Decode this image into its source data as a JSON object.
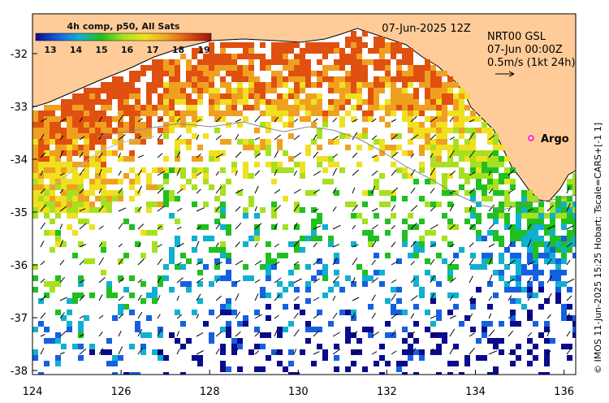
{
  "product_label": "4h comp, p50, All Sats",
  "colorbar": {
    "ticks": [
      "13",
      "14",
      "15",
      "16",
      "17",
      "18",
      "19"
    ],
    "stops": [
      "#0a0a8c",
      "#1560e0",
      "#10b0d0",
      "#1fc01f",
      "#a6e020",
      "#f0e020",
      "#f0a020",
      "#e05010",
      "#a01010"
    ]
  },
  "date_label": "07-Jun-2025 12Z",
  "current_info": {
    "line1": "NRT00 GSL",
    "line2": "07-Jun 00:00Z",
    "line3": "0.5m/s (1kt 24h)"
  },
  "argo_label": "Argo",
  "side_credit": "© IMOS 11-Jun-2025 15:25 Hobart; Tscale=CARS+[-1 1]",
  "axes": {
    "x_ticks": [
      "124",
      "126",
      "128",
      "130",
      "132",
      "134",
      "136"
    ],
    "y_ticks": [
      "-32",
      "-33",
      "-34",
      "-35",
      "-36",
      "-37",
      "-38"
    ]
  },
  "colors": {
    "land": "#ffcc99",
    "ocean_nodata": "#ffffff",
    "argo_marker": "#ff00ff"
  }
}
